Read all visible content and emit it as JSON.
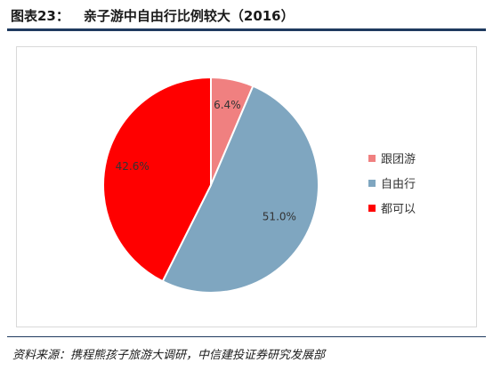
{
  "header": {
    "label": "图表23：",
    "title": "亲子游中自由行比例较大（2016）"
  },
  "source": "资料来源：携程熊孩子旅游大调研，中信建投证券研究发展部",
  "chart_data": {
    "type": "pie",
    "categories": [
      "跟团游",
      "自由行",
      "都可以"
    ],
    "values": [
      6.4,
      51.0,
      42.6
    ],
    "labels": [
      "6.4%",
      "51.0%",
      "42.6%"
    ],
    "colors": [
      "#f08080",
      "#7fa6c0",
      "#ff0000"
    ],
    "legend": "right",
    "start_angle": "12 o'clock",
    "direction": "clockwise"
  }
}
